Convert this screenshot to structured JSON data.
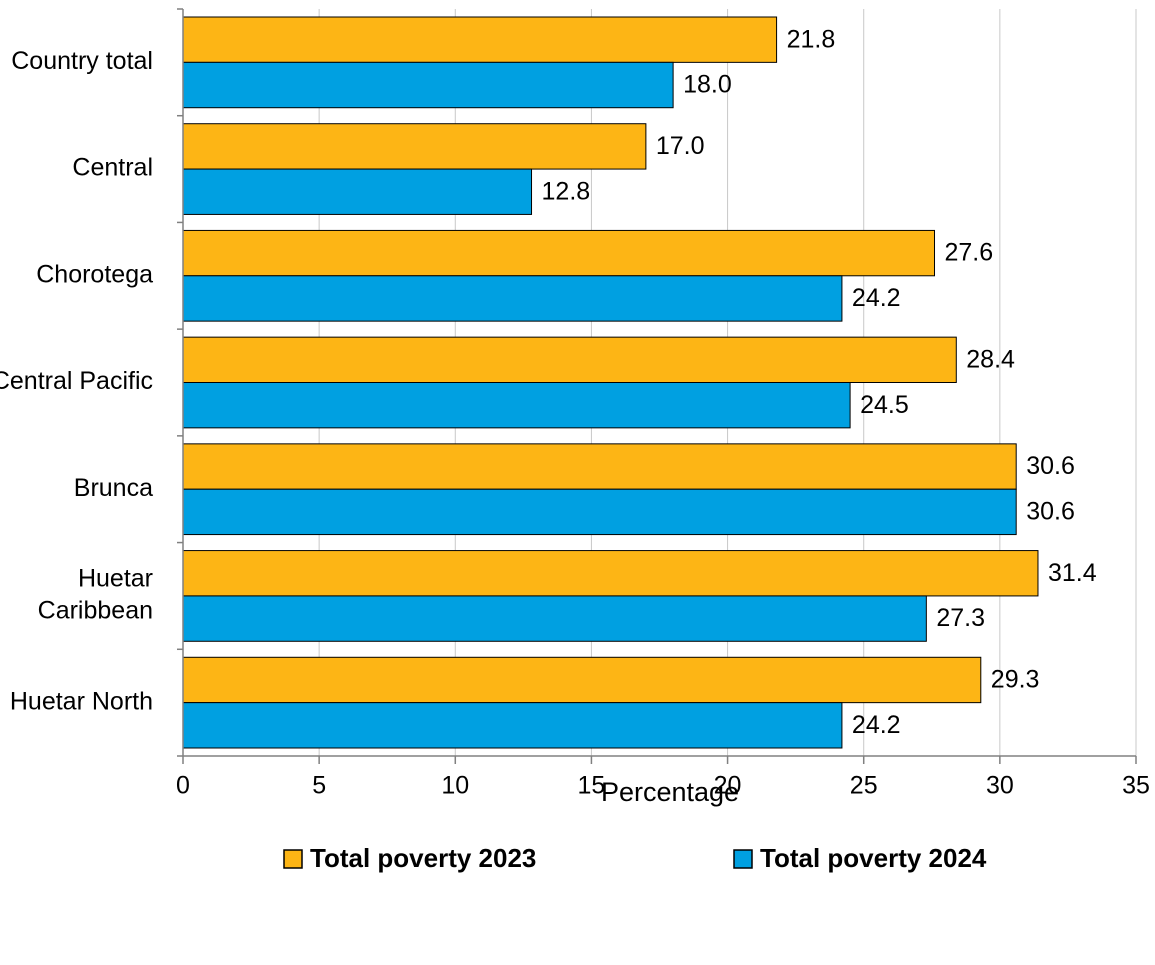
{
  "chart_data": {
    "type": "bar",
    "orientation": "horizontal",
    "categories": [
      "Country total",
      "Central",
      "Chorotega",
      "Central Pacific",
      "Brunca",
      "Huetar Caribbean",
      "Huetar North"
    ],
    "category_lines": [
      [
        "Country total"
      ],
      [
        "Central"
      ],
      [
        "Chorotega"
      ],
      [
        "Central Pacific"
      ],
      [
        "Brunca"
      ],
      [
        "Huetar",
        "Caribbean"
      ],
      [
        "Huetar North"
      ]
    ],
    "series": [
      {
        "name": "Total poverty 2023",
        "color": "#fdb515",
        "values": [
          21.8,
          17.0,
          27.6,
          28.4,
          30.6,
          31.4,
          29.3
        ]
      },
      {
        "name": "Total poverty 2024",
        "color": "#00a0e1",
        "values": [
          18.0,
          12.8,
          24.2,
          24.5,
          30.6,
          27.3,
          24.2
        ]
      }
    ],
    "xlabel": "Percentage",
    "xlim": [
      0,
      35
    ],
    "xticks": [
      0,
      5,
      10,
      15,
      20,
      25,
      30,
      35
    ],
    "grid": "vertical",
    "legend": "bottom"
  }
}
